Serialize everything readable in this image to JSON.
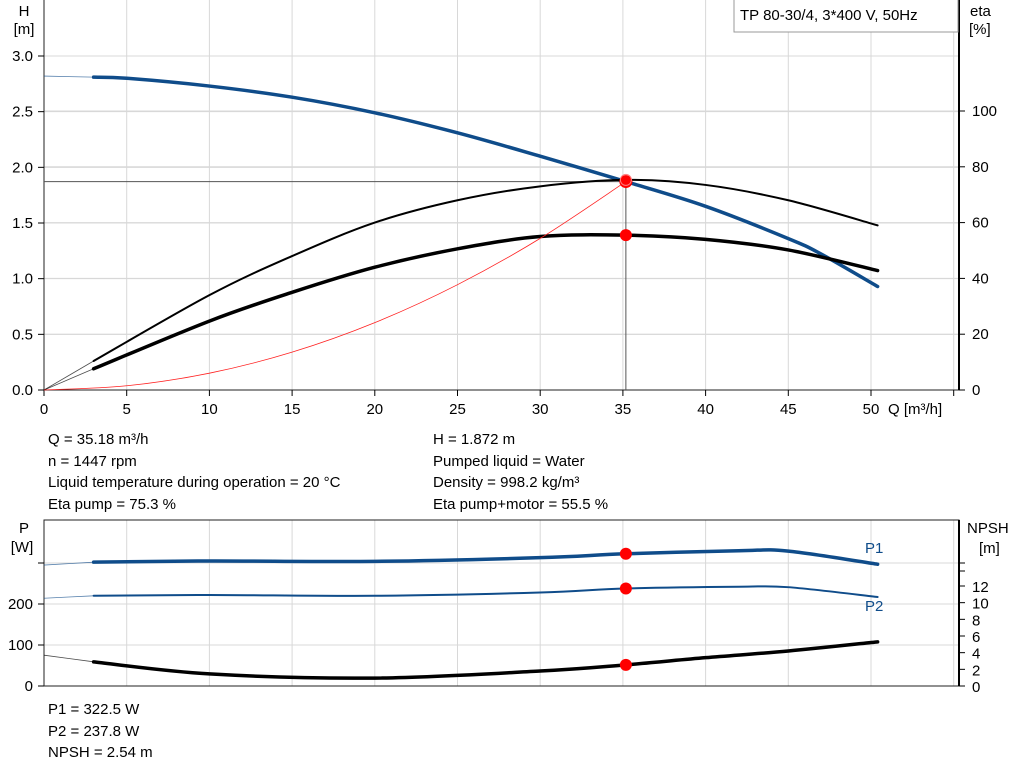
{
  "chart_data": [
    {
      "type": "line",
      "title": "TP 80-30/4, 3*400 V, 50Hz",
      "xlabel": "Q [m³/h]",
      "ylabel_left": [
        "H",
        "[m]"
      ],
      "ylabel_right": [
        "eta",
        "[%]"
      ],
      "xlim": [
        0,
        55
      ],
      "ylim_left": [
        0,
        3.0
      ],
      "ylim_right": [
        0,
        120
      ],
      "xticks": [
        0,
        5,
        10,
        15,
        20,
        25,
        30,
        35,
        40,
        45,
        50
      ],
      "yticks_left": [
        "0.0",
        "0.5",
        "1.0",
        "1.5",
        "2.0",
        "2.5",
        "3.0"
      ],
      "yticks_right": [
        0,
        20,
        40,
        60,
        80,
        100
      ],
      "grid": true,
      "series": [
        {
          "key": "H",
          "axis": "left",
          "color": "#0f4c8a",
          "x": [
            0,
            3,
            5,
            10,
            15,
            20,
            25,
            30,
            35.18,
            40,
            45,
            47,
            50.4
          ],
          "y": [
            2.82,
            2.81,
            2.8,
            2.73,
            2.63,
            2.49,
            2.31,
            2.1,
            1.872,
            1.65,
            1.36,
            1.22,
            0.93
          ]
        },
        {
          "key": "eta_pump",
          "axis": "right",
          "color": "#000000",
          "x": [
            0,
            3,
            10,
            15,
            20,
            25,
            30,
            35.18,
            40,
            45,
            50.4
          ],
          "y": [
            0,
            10.4,
            34,
            48,
            60,
            68,
            73,
            75.3,
            73.5,
            68,
            59
          ]
        },
        {
          "key": "eta_pump_motor",
          "axis": "right",
          "color": "#000000",
          "x": [
            0,
            3,
            10,
            15,
            20,
            25,
            30,
            35.18,
            40,
            45,
            50.4
          ],
          "y": [
            0,
            7.6,
            24.7,
            35,
            44,
            50.6,
            55,
            55.5,
            54,
            50.2,
            42.8
          ]
        },
        {
          "key": "system_curve",
          "axis": "left",
          "color": "#ff2020",
          "x": [
            0,
            5,
            10,
            15,
            20,
            25,
            30,
            35.18
          ],
          "y": [
            0,
            0.038,
            0.151,
            0.34,
            0.605,
            0.946,
            1.362,
            1.872
          ]
        }
      ],
      "operating_point": {
        "Q": 35.18,
        "H": 1.872,
        "eta_pump": 75.3,
        "eta_pump_motor": 55.5
      }
    },
    {
      "type": "line",
      "ylabel_left": [
        "P",
        "[W]"
      ],
      "ylabel_right": [
        "NPSH",
        "[m]"
      ],
      "xlim": [
        0,
        55
      ],
      "ylim_left": [
        0,
        400
      ],
      "ylim_right": [
        0,
        16.6
      ],
      "yticks_left": [
        0,
        100,
        200
      ],
      "yticks_right": [
        0,
        2,
        4,
        6,
        8,
        10,
        12
      ],
      "grid": true,
      "series": [
        {
          "key": "P1",
          "name": "P1",
          "axis": "left",
          "color": "#0f4c8a",
          "x": [
            0,
            3,
            10,
            20,
            30,
            35.18,
            42,
            45,
            50.4
          ],
          "y": [
            295,
            302,
            305,
            304,
            313,
            322.5,
            330,
            329,
            297
          ]
        },
        {
          "key": "P2",
          "name": "P2",
          "axis": "left",
          "color": "#0f4c8a",
          "x": [
            0,
            3,
            10,
            20,
            30,
            35.18,
            42,
            45,
            50.4
          ],
          "y": [
            214,
            220,
            222,
            220,
            228,
            237.8,
            242,
            241,
            217
          ]
        },
        {
          "key": "NPSH",
          "axis": "right",
          "color": "#000000",
          "x": [
            0,
            3,
            10,
            20,
            30,
            35.18,
            40,
            45,
            50.4
          ],
          "y": [
            3.7,
            2.9,
            1.45,
            0.95,
            1.8,
            2.54,
            3.4,
            4.2,
            5.3
          ]
        }
      ],
      "operating_point": {
        "Q": 35.18,
        "P1": 322.5,
        "P2": 237.8,
        "NPSH": 2.54
      }
    }
  ],
  "info_left": [
    "Q = 35.18 m³/h",
    "n = 1447 rpm",
    "Liquid temperature during operation = 20 °C",
    "Eta pump = 75.3 %"
  ],
  "info_right": [
    "H = 1.872 m",
    "Pumped liquid = Water",
    "Density = 998.2 kg/m³",
    "Eta pump+motor = 55.5 %"
  ],
  "info_bottom": [
    "P1 = 322.5 W",
    "P2 = 237.8 W",
    "NPSH = 2.54 m"
  ],
  "colors": {
    "pump_blue": "#0f4c8a",
    "point_red": "#ff0000",
    "grid": "#d8d8d8"
  }
}
